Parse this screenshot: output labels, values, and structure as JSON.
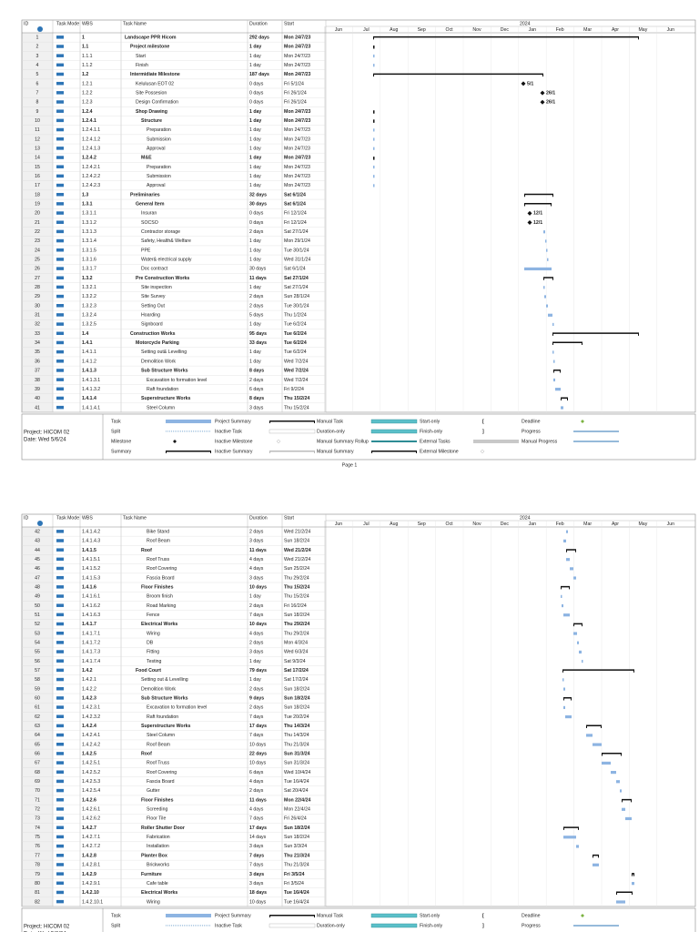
{
  "header": {
    "id": "ID",
    "mode": "Task Mode",
    "wbs": "WBS",
    "name": "Task Name",
    "duration": "Duration",
    "start": "Start"
  },
  "timeline": {
    "year": "2024",
    "months": [
      "Jun",
      "Jul",
      "Aug",
      "Sep",
      "Oct",
      "Nov",
      "Dec",
      "Jan",
      "Feb",
      "Mar",
      "Apr",
      "May",
      "Jun"
    ]
  },
  "rows": [
    {
      "id": 1,
      "wbs": "1",
      "name": "Landscape PPR Hicom",
      "duration": "292 days",
      "start": "Mon 24/7/23",
      "summary": true
    },
    {
      "id": 2,
      "wbs": "1.1",
      "name": "Project milestone",
      "duration": "1 day",
      "start": "Mon 24/7/23",
      "summary": true
    },
    {
      "id": 3,
      "wbs": "1.1.1",
      "name": "Start",
      "duration": "1 day",
      "start": "Mon 24/7/23"
    },
    {
      "id": 4,
      "wbs": "1.1.2",
      "name": "Finish",
      "duration": "1 day",
      "start": "Mon 24/7/23"
    },
    {
      "id": 5,
      "wbs": "1.2",
      "name": "Intermidiate Milestone",
      "duration": "187 days",
      "start": "Mon 24/7/23",
      "summary": true
    },
    {
      "id": 6,
      "wbs": "1.2.1",
      "name": "Kelulusan EOT 02",
      "duration": "0 days",
      "start": "Fri 5/1/24",
      "label": "5/1"
    },
    {
      "id": 7,
      "wbs": "1.2.2",
      "name": "Site Possesion",
      "duration": "0 days",
      "start": "Fri 26/1/24",
      "label": "26/1"
    },
    {
      "id": 8,
      "wbs": "1.2.3",
      "name": "Design Confirmation",
      "duration": "0 days",
      "start": "Fri 26/1/24",
      "label": "26/1"
    },
    {
      "id": 9,
      "wbs": "1.2.4",
      "name": "Shop Drawing",
      "duration": "1 day",
      "start": "Mon 24/7/23",
      "summary": true
    },
    {
      "id": 10,
      "wbs": "1.2.4.1",
      "name": "Structure",
      "duration": "1 day",
      "start": "Mon 24/7/23",
      "summary": true
    },
    {
      "id": 11,
      "wbs": "1.2.4.1.1",
      "name": "Preparation",
      "duration": "1 day",
      "start": "Mon 24/7/23"
    },
    {
      "id": 12,
      "wbs": "1.2.4.1.2",
      "name": "Submission",
      "duration": "1 day",
      "start": "Mon 24/7/23"
    },
    {
      "id": 13,
      "wbs": "1.2.4.1.3",
      "name": "Approval",
      "duration": "1 day",
      "start": "Mon 24/7/23"
    },
    {
      "id": 14,
      "wbs": "1.2.4.2",
      "name": "M&E",
      "duration": "1 day",
      "start": "Mon 24/7/23",
      "summary": true
    },
    {
      "id": 15,
      "wbs": "1.2.4.2.1",
      "name": "Preparation",
      "duration": "1 day",
      "start": "Mon 24/7/23"
    },
    {
      "id": 16,
      "wbs": "1.2.4.2.2",
      "name": "Submission",
      "duration": "1 day",
      "start": "Mon 24/7/23"
    },
    {
      "id": 17,
      "wbs": "1.2.4.2.3",
      "name": "Approval",
      "duration": "1 day",
      "start": "Mon 24/7/23"
    },
    {
      "id": 18,
      "wbs": "1.3",
      "name": "Preliminaries",
      "duration": "32 days",
      "start": "Sat 6/1/24",
      "summary": true
    },
    {
      "id": 19,
      "wbs": "1.3.1",
      "name": "General Item",
      "duration": "30 days",
      "start": "Sat 6/1/24",
      "summary": true
    },
    {
      "id": 20,
      "wbs": "1.3.1.1",
      "name": "Insuran",
      "duration": "0 days",
      "start": "Fri 12/1/24",
      "label": "12/1"
    },
    {
      "id": 21,
      "wbs": "1.3.1.2",
      "name": "SOCSO",
      "duration": "0 days",
      "start": "Fri 12/1/24",
      "label": "12/1"
    },
    {
      "id": 22,
      "wbs": "1.3.1.3",
      "name": "Contractor storage",
      "duration": "2 days",
      "start": "Sat 27/1/24"
    },
    {
      "id": 23,
      "wbs": "1.3.1.4",
      "name": "Safety, Health& Welfare",
      "duration": "1 day",
      "start": "Mon 29/1/24"
    },
    {
      "id": 24,
      "wbs": "1.3.1.5",
      "name": "PPE",
      "duration": "1 day",
      "start": "Tue 30/1/24"
    },
    {
      "id": 25,
      "wbs": "1.3.1.6",
      "name": "Water& electrical supply",
      "duration": "1 day",
      "start": "Wed 31/1/24"
    },
    {
      "id": 26,
      "wbs": "1.3.1.7",
      "name": "Doc contract",
      "duration": "30 days",
      "start": "Sat 6/1/24"
    },
    {
      "id": 27,
      "wbs": "1.3.2",
      "name": "Pre Construction Works",
      "duration": "11 days",
      "start": "Sat 27/1/24",
      "summary": true
    },
    {
      "id": 28,
      "wbs": "1.3.2.1",
      "name": "Site inspection",
      "duration": "1 day",
      "start": "Sat 27/1/24"
    },
    {
      "id": 29,
      "wbs": "1.3.2.2",
      "name": "Site Survey",
      "duration": "2 days",
      "start": "Sun 28/1/24"
    },
    {
      "id": 30,
      "wbs": "1.3.2.3",
      "name": "Setting Out",
      "duration": "2 days",
      "start": "Tue 30/1/24"
    },
    {
      "id": 31,
      "wbs": "1.3.2.4",
      "name": "Hoarding",
      "duration": "5 days",
      "start": "Thu 1/2/24"
    },
    {
      "id": 32,
      "wbs": "1.3.2.5",
      "name": "Signboard",
      "duration": "1 day",
      "start": "Tue 6/2/24"
    },
    {
      "id": 33,
      "wbs": "1.4",
      "name": "Construction Works",
      "duration": "95 days",
      "start": "Tue 6/2/24",
      "summary": true
    },
    {
      "id": 34,
      "wbs": "1.4.1",
      "name": "Motorcycle Parking",
      "duration": "33 days",
      "start": "Tue 6/2/24",
      "summary": true
    },
    {
      "id": 35,
      "wbs": "1.4.1.1",
      "name": "Setting out& Levelling",
      "duration": "1 day",
      "start": "Tue 6/2/24"
    },
    {
      "id": 36,
      "wbs": "1.4.1.2",
      "name": "Demolition Work",
      "duration": "1 day",
      "start": "Wed 7/2/24"
    },
    {
      "id": 37,
      "wbs": "1.4.1.3",
      "name": "Sub Structure Works",
      "duration": "8 days",
      "start": "Wed 7/2/24",
      "summary": true
    },
    {
      "id": 38,
      "wbs": "1.4.1.3.1",
      "name": "Excavation to formation level",
      "duration": "2 days",
      "start": "Wed 7/2/24"
    },
    {
      "id": 39,
      "wbs": "1.4.1.3.2",
      "name": "Raft foundation",
      "duration": "6 days",
      "start": "Fri 9/2/24"
    },
    {
      "id": 40,
      "wbs": "1.4.1.4",
      "name": "Superstructure Works",
      "duration": "8 days",
      "start": "Thu 15/2/24",
      "summary": true
    },
    {
      "id": 41,
      "wbs": "1.4.1.4.1",
      "name": "Steel Column",
      "duration": "3 days",
      "start": "Thu 15/2/24"
    },
    {
      "id": 42,
      "wbs": "1.4.1.4.2",
      "name": "Bike Stand",
      "duration": "2 days",
      "start": "Wed 21/2/24"
    },
    {
      "id": 43,
      "wbs": "1.4.1.4.3",
      "name": "Roof Beam",
      "duration": "3 days",
      "start": "Sun 18/2/24"
    },
    {
      "id": 44,
      "wbs": "1.4.1.5",
      "name": "Roof",
      "duration": "11 days",
      "start": "Wed 21/2/24",
      "summary": true
    },
    {
      "id": 45,
      "wbs": "1.4.1.5.1",
      "name": "Roof Truss",
      "duration": "4 days",
      "start": "Wed 21/2/24"
    },
    {
      "id": 46,
      "wbs": "1.4.1.5.2",
      "name": "Roof Covering",
      "duration": "4 days",
      "start": "Sun 25/2/24"
    },
    {
      "id": 47,
      "wbs": "1.4.1.5.3",
      "name": "Fascia Board",
      "duration": "3 days",
      "start": "Thu 29/2/24"
    },
    {
      "id": 48,
      "wbs": "1.4.1.6",
      "name": "Floor Finishes",
      "duration": "10 days",
      "start": "Thu 15/2/24",
      "summary": true
    },
    {
      "id": 49,
      "wbs": "1.4.1.6.1",
      "name": "Broom finish",
      "duration": "1 day",
      "start": "Thu 15/2/24"
    },
    {
      "id": 50,
      "wbs": "1.4.1.6.2",
      "name": "Road Marking",
      "duration": "2 days",
      "start": "Fri 16/2/24"
    },
    {
      "id": 51,
      "wbs": "1.4.1.6.3",
      "name": "Fence",
      "duration": "7 days",
      "start": "Sun 18/2/24"
    },
    {
      "id": 52,
      "wbs": "1.4.1.7",
      "name": "Electrical Works",
      "duration": "10 days",
      "start": "Thu 29/2/24",
      "summary": true
    },
    {
      "id": 53,
      "wbs": "1.4.1.7.1",
      "name": "Wiring",
      "duration": "4 days",
      "start": "Thu 29/2/24"
    },
    {
      "id": 54,
      "wbs": "1.4.1.7.2",
      "name": "DB",
      "duration": "2 days",
      "start": "Mon 4/3/24"
    },
    {
      "id": 55,
      "wbs": "1.4.1.7.3",
      "name": "Fitting",
      "duration": "3 days",
      "start": "Wed 6/3/24"
    },
    {
      "id": 56,
      "wbs": "1.4.1.7.4",
      "name": "Testing",
      "duration": "1 day",
      "start": "Sat 9/3/24"
    },
    {
      "id": 57,
      "wbs": "1.4.2",
      "name": "Food Court",
      "duration": "79 days",
      "start": "Sat 17/2/24",
      "summary": true
    },
    {
      "id": 58,
      "wbs": "1.4.2.1",
      "name": "Setting out & Levelling",
      "duration": "1 day",
      "start": "Sat 17/2/24"
    },
    {
      "id": 59,
      "wbs": "1.4.2.2",
      "name": "Demolition Work",
      "duration": "2 days",
      "start": "Sun 18/2/24"
    },
    {
      "id": 60,
      "wbs": "1.4.2.3",
      "name": "Sub Structure Works",
      "duration": "9 days",
      "start": "Sun 18/2/24",
      "summary": true
    },
    {
      "id": 61,
      "wbs": "1.4.2.3.1",
      "name": "Excavation to formation level",
      "duration": "2 days",
      "start": "Sun 18/2/24"
    },
    {
      "id": 62,
      "wbs": "1.4.2.3.2",
      "name": "Raft foundation",
      "duration": "7 days",
      "start": "Tue 20/2/24"
    },
    {
      "id": 63,
      "wbs": "1.4.2.4",
      "name": "Superstructure Works",
      "duration": "17 days",
      "start": "Thu 14/3/24",
      "summary": true
    },
    {
      "id": 64,
      "wbs": "1.4.2.4.1",
      "name": "Steel Column",
      "duration": "7 days",
      "start": "Thu 14/3/24"
    },
    {
      "id": 65,
      "wbs": "1.4.2.4.2",
      "name": "Roof Beam",
      "duration": "10 days",
      "start": "Thu 21/3/24"
    },
    {
      "id": 66,
      "wbs": "1.4.2.5",
      "name": "Roof",
      "duration": "22 days",
      "start": "Sun 31/3/24",
      "summary": true
    },
    {
      "id": 67,
      "wbs": "1.4.2.5.1",
      "name": "Roof Truss",
      "duration": "10 days",
      "start": "Sun 31/3/24"
    },
    {
      "id": 68,
      "wbs": "1.4.2.5.2",
      "name": "Roof Covering",
      "duration": "6 days",
      "start": "Wed 10/4/24"
    },
    {
      "id": 69,
      "wbs": "1.4.2.5.3",
      "name": "Fascia Board",
      "duration": "4 days",
      "start": "Tue 16/4/24"
    },
    {
      "id": 70,
      "wbs": "1.4.2.5.4",
      "name": "Gutter",
      "duration": "2 days",
      "start": "Sat 20/4/24"
    },
    {
      "id": 71,
      "wbs": "1.4.2.6",
      "name": "Floor Finishes",
      "duration": "11 days",
      "start": "Mon 22/4/24",
      "summary": true
    },
    {
      "id": 72,
      "wbs": "1.4.2.6.1",
      "name": "Screeding",
      "duration": "4 days",
      "start": "Mon 22/4/24"
    },
    {
      "id": 73,
      "wbs": "1.4.2.6.2",
      "name": "Floor Tile",
      "duration": "7 days",
      "start": "Fri 26/4/24"
    },
    {
      "id": 74,
      "wbs": "1.4.2.7",
      "name": "Roller Shutter Door",
      "duration": "17 days",
      "start": "Sun 18/2/24",
      "summary": true
    },
    {
      "id": 75,
      "wbs": "1.4.2.7.1",
      "name": "Fabrication",
      "duration": "14 days",
      "start": "Sun 18/2/24"
    },
    {
      "id": 76,
      "wbs": "1.4.2.7.2",
      "name": "Installation",
      "duration": "3 days",
      "start": "Sun 3/3/24"
    },
    {
      "id": 77,
      "wbs": "1.4.2.8",
      "name": "Planter Box",
      "duration": "7 days",
      "start": "Thu 21/3/24",
      "summary": true
    },
    {
      "id": 78,
      "wbs": "1.4.2.8.1",
      "name": "Brickworks",
      "duration": "7 days",
      "start": "Thu 21/3/24"
    },
    {
      "id": 79,
      "wbs": "1.4.2.9",
      "name": "Furniture",
      "duration": "3 days",
      "start": "Fri 3/5/24",
      "summary": true
    },
    {
      "id": 80,
      "wbs": "1.4.2.9.1",
      "name": "Cafe table",
      "duration": "3 days",
      "start": "Fri 3/5/24"
    },
    {
      "id": 81,
      "wbs": "1.4.2.10",
      "name": "Electrical Works",
      "duration": "18 days",
      "start": "Tue 16/4/24",
      "summary": true
    },
    {
      "id": 82,
      "wbs": "1.4.2.10.1",
      "name": "Wiring",
      "duration": "10 days",
      "start": "Tue 16/4/24"
    }
  ],
  "legend": [
    "Task",
    "Split",
    "Milestone",
    "Summary",
    "Project Summary",
    "Inactive Task",
    "Inactive Milestone",
    "Inactive Summary",
    "Manual Task",
    "Duration-only",
    "Manual Summary Rollup",
    "Manual Summary",
    "Start-only",
    "Finish-only",
    "External Tasks",
    "External Milestone",
    "Deadline",
    "Progress",
    "Manual Progress"
  ],
  "footer": {
    "project": "Project: HICOM 02",
    "date": "Date: Wed 5/6/24",
    "page": "Page 1"
  }
}
